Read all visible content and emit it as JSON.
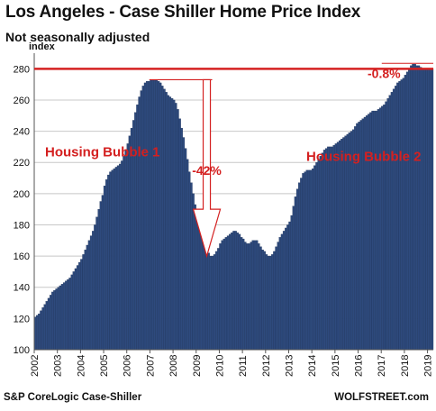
{
  "title": "Los Angeles - Case Shiller Home Price Index",
  "subtitle": "Not seasonally adjusted",
  "source": "S&P CoreLogic Case-Shiller",
  "credit": "WOLFSTREET.com",
  "colors": {
    "bar": "#2e4a7d",
    "bar_edge": "#1c3157",
    "accent": "#d42020",
    "grid": "#c8c8c8"
  },
  "chart_data": {
    "type": "bar",
    "title": "Los Angeles - Case Shiller Home Price Index",
    "subtitle": "Not seasonally adjusted",
    "ylabel": "index",
    "xlabel": "",
    "ylim": [
      100,
      290
    ],
    "yticks": [
      100,
      120,
      140,
      160,
      180,
      200,
      220,
      240,
      260,
      280
    ],
    "xlim": [
      "2002-01",
      "2019-03"
    ],
    "xticks": [
      "2002",
      "2003",
      "2004",
      "2005",
      "2006",
      "2007",
      "2008",
      "2009",
      "2010",
      "2011",
      "2012",
      "2013",
      "2014",
      "2015",
      "2016",
      "2017",
      "2018",
      "2019"
    ],
    "grid": true,
    "frequency": "monthly",
    "x_start": "2002-01",
    "series": [
      {
        "values": [
          121,
          122,
          123,
          125,
          127,
          129,
          131,
          133,
          135,
          137,
          138,
          139,
          140,
          141,
          142,
          143,
          144,
          145,
          146,
          148,
          150,
          152,
          154,
          156,
          158,
          161,
          164,
          167,
          170,
          173,
          176,
          180,
          185,
          190,
          195,
          199,
          205,
          209,
          212,
          214,
          215,
          216,
          217,
          218,
          219,
          221,
          224,
          228,
          232,
          237,
          242,
          247,
          252,
          257,
          262,
          266,
          269,
          271,
          272,
          272,
          273,
          273,
          273,
          273,
          272,
          271,
          269,
          267,
          265,
          263,
          262,
          261,
          260,
          258,
          254,
          248,
          242,
          236,
          229,
          222,
          214,
          207,
          200,
          193,
          188,
          182,
          177,
          172,
          168,
          165,
          162,
          160,
          160,
          161,
          163,
          165,
          168,
          170,
          171,
          172,
          173,
          174,
          175,
          176,
          176,
          175,
          174,
          172,
          171,
          169,
          168,
          168,
          169,
          170,
          170,
          170,
          168,
          166,
          164,
          163,
          161,
          160,
          160,
          161,
          163,
          166,
          169,
          172,
          174,
          176,
          178,
          180,
          182,
          186,
          192,
          198,
          203,
          207,
          210,
          213,
          214,
          215,
          215,
          215,
          216,
          218,
          220,
          222,
          224,
          226,
          228,
          229,
          230,
          230,
          230,
          231,
          232,
          233,
          234,
          235,
          236,
          237,
          238,
          239,
          240,
          241,
          243,
          245,
          246,
          247,
          248,
          249,
          250,
          251,
          252,
          253,
          253,
          253,
          254,
          255,
          256,
          257,
          259,
          261,
          263,
          265,
          267,
          269,
          271,
          272,
          273,
          274,
          276,
          278,
          280,
          282,
          283,
          283,
          282,
          282,
          281,
          280,
          280,
          280,
          280,
          280,
          280
        ]
      }
    ],
    "reference_line": 280,
    "annotations": [
      {
        "text": "Housing Bubble 1"
      },
      {
        "text": "Housing Bubble 2"
      },
      {
        "text": "-42%"
      },
      {
        "text": "-0.8%"
      }
    ]
  }
}
